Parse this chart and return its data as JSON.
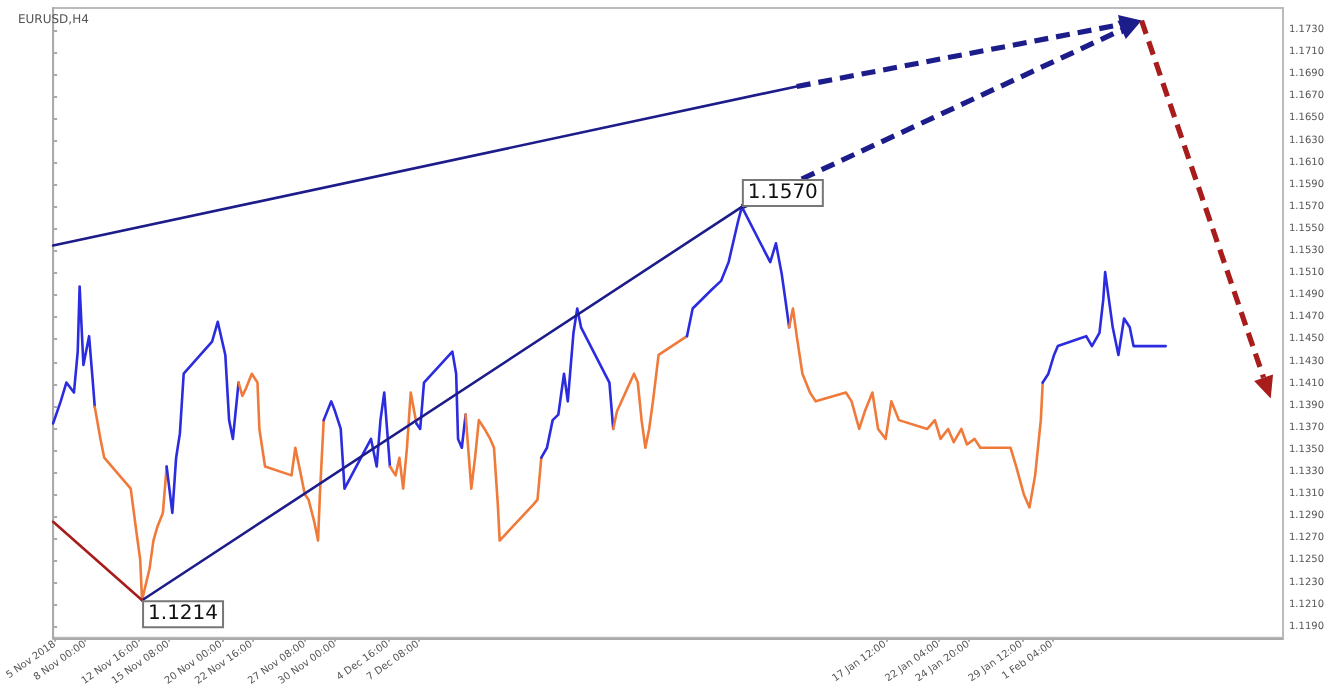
{
  "chart_data": {
    "type": "line",
    "title": "EURUSD,H4",
    "xlim": [
      "2018-11-05T04:00",
      "2019-02-21T12:00"
    ],
    "ylim": [
      1.118,
      1.175
    ],
    "xticks": [
      {
        "value": "2018-11-05T08:00",
        "label": "5 Nov 2018"
      },
      {
        "value": "2018-11-08T00:00",
        "label": "8 Nov 00:00"
      },
      {
        "value": "2018-11-12T16:00",
        "label": "12 Nov 16:00"
      },
      {
        "value": "2018-11-15T08:00",
        "label": "15 Nov 08:00"
      },
      {
        "value": "2018-11-20T00:00",
        "label": "20 Nov 00:00"
      },
      {
        "value": "2018-11-22T16:00",
        "label": "22 Nov 16:00"
      },
      {
        "value": "2018-11-27T08:00",
        "label": "27 Nov 08:00"
      },
      {
        "value": "2018-11-30T00:00",
        "label": "30 Nov 00:00"
      },
      {
        "value": "2018-12-04T16:00",
        "label": "4 Dec 16:00"
      },
      {
        "value": "2018-12-07T08:00",
        "label": "7 Dec 08:00"
      },
      {
        "value": "2019-01-17T12:00",
        "label": "17 Jan 12:00"
      },
      {
        "value": "2019-01-22T04:00",
        "label": "22 Jan 04:00"
      },
      {
        "value": "2019-01-24T20:00",
        "label": "24 Jan 20:00"
      },
      {
        "value": "2019-01-29T12:00",
        "label": "29 Jan 12:00"
      },
      {
        "value": "2019-02-01T04:00",
        "label": "1 Feb 04:00"
      }
    ],
    "yticks": [
      {
        "value": 1.119,
        "label": "1.1190"
      },
      {
        "value": 1.121,
        "label": "1.1210"
      },
      {
        "value": 1.123,
        "label": "1.1230"
      },
      {
        "value": 1.125,
        "label": "1.1250"
      },
      {
        "value": 1.127,
        "label": "1.1270"
      },
      {
        "value": 1.129,
        "label": "1.1290"
      },
      {
        "value": 1.131,
        "label": "1.1310"
      },
      {
        "value": 1.133,
        "label": "1.1330"
      },
      {
        "value": 1.135,
        "label": "1.1350"
      },
      {
        "value": 1.137,
        "label": "1.1370"
      },
      {
        "value": 1.139,
        "label": "1.1390"
      },
      {
        "value": 1.141,
        "label": "1.1410"
      },
      {
        "value": 1.143,
        "label": "1.1430"
      },
      {
        "value": 1.145,
        "label": "1.1450"
      },
      {
        "value": 1.147,
        "label": "1.1470"
      },
      {
        "value": 1.149,
        "label": "1.1490"
      },
      {
        "value": 1.151,
        "label": "1.1510"
      },
      {
        "value": 1.153,
        "label": "1.1530"
      },
      {
        "value": 1.155,
        "label": "1.1550"
      },
      {
        "value": 1.157,
        "label": "1.1570"
      },
      {
        "value": 1.159,
        "label": "1.1590"
      },
      {
        "value": 1.161,
        "label": "1.1610"
      },
      {
        "value": 1.163,
        "label": "1.1630"
      },
      {
        "value": 1.165,
        "label": "1.1650"
      },
      {
        "value": 1.167,
        "label": "1.1670"
      },
      {
        "value": 1.169,
        "label": "1.1690"
      },
      {
        "value": 1.171,
        "label": "1.1710"
      },
      {
        "value": 1.173,
        "label": "1.1730"
      }
    ],
    "grid": false,
    "line_style": "solid",
    "annotations": [
      {
        "text": "1.1570",
        "x": "2019-01-04T20:00",
        "y": 1.157
      },
      {
        "text": "1.1214",
        "x": "2018-11-13T00:00",
        "y": 1.1214
      }
    ],
    "series": [
      {
        "color": "#2b2be0",
        "x": [
          "2018-11-05T04:00",
          "2018-11-05T20:00",
          "2018-11-06T08:00",
          "2018-11-07T00:00",
          "2018-11-07T08:00",
          "2018-11-07T12:00",
          "2018-11-07T20:00",
          "2018-11-08T08:00",
          "2018-11-08T16:00",
          "2018-11-08T20:00"
        ],
        "values": [
          1.1374,
          1.1394,
          1.1411,
          1.1402,
          1.1439,
          1.1498,
          1.1427,
          1.1453,
          1.1411,
          1.1389
        ]
      },
      {
        "color": "#f07a3a",
        "x": [
          "2018-11-08T20:00",
          "2018-11-09T08:00",
          "2018-11-09T16:00",
          "2018-11-12T00:00",
          "2018-11-12T12:00",
          "2018-11-12T20:00",
          "2018-11-13T00:00",
          "2018-11-13T16:00",
          "2018-11-14T00:00",
          "2018-11-14T08:00",
          "2018-11-14T20:00",
          "2018-11-15T04:00"
        ],
        "values": [
          1.1389,
          1.136,
          1.1343,
          1.1315,
          1.1276,
          1.1251,
          1.1214,
          1.1243,
          1.1268,
          1.128,
          1.1293,
          1.1335
        ]
      },
      {
        "color": "#2b2be0",
        "x": [
          "2018-11-15T04:00",
          "2018-11-15T16:00",
          "2018-11-16T00:00",
          "2018-11-16T08:00",
          "2018-11-16T16:00",
          "2018-11-19T04:00",
          "2018-11-19T16:00",
          "2018-11-20T08:00",
          "2018-11-20T16:00",
          "2018-11-21T00:00",
          "2018-11-21T12:00"
        ],
        "values": [
          1.1335,
          1.1293,
          1.1343,
          1.1365,
          1.1419,
          1.1448,
          1.1466,
          1.1436,
          1.1377,
          1.136,
          1.1411
        ]
      },
      {
        "color": "#f07a3a",
        "x": [
          "2018-11-21T12:00",
          "2018-11-21T20:00",
          "2018-11-22T04:00",
          "2018-11-22T16:00",
          "2018-11-23T04:00",
          "2018-11-23T08:00",
          "2018-11-23T20:00",
          "2018-11-26T04:00",
          "2018-11-26T12:00",
          "2018-11-27T00:00",
          "2018-11-27T08:00",
          "2018-11-27T16:00",
          "2018-11-28T04:00",
          "2018-11-28T12:00",
          "2018-11-28T16:00",
          "2018-11-29T00:00"
        ],
        "values": [
          1.1411,
          1.1399,
          1.1406,
          1.1419,
          1.1411,
          1.1369,
          1.1335,
          1.1327,
          1.1352,
          1.1327,
          1.131,
          1.1305,
          1.1285,
          1.1268,
          1.131,
          1.1377
        ]
      },
      {
        "color": "#2b2be0",
        "x": [
          "2018-11-29T00:00",
          "2018-11-29T16:00",
          "2018-11-30T00:00",
          "2018-11-30T12:00",
          "2018-11-30T20:00",
          "2018-12-03T04:00",
          "2018-12-03T16:00",
          "2018-12-04T00:00",
          "2018-12-04T08:00",
          "2018-12-04T20:00"
        ],
        "values": [
          1.1377,
          1.1394,
          1.1385,
          1.1369,
          1.1315,
          1.136,
          1.1335,
          1.1377,
          1.1402,
          1.1335
        ]
      },
      {
        "color": "#f07a3a",
        "x": [
          "2018-12-04T20:00",
          "2018-12-05T08:00",
          "2018-12-05T16:00",
          "2018-12-06T00:00",
          "2018-12-06T08:00",
          "2018-12-06T16:00",
          "2018-12-07T04:00"
        ],
        "values": [
          1.1335,
          1.1327,
          1.1343,
          1.1315,
          1.1352,
          1.1402,
          1.1374
        ]
      },
      {
        "color": "#2b2be0",
        "x": [
          "2018-12-07T04:00",
          "2018-12-07T12:00",
          "2018-12-07T20:00",
          "2018-12-10T08:00",
          "2018-12-10T16:00",
          "2018-12-10T20:00",
          "2018-12-11T04:00",
          "2018-12-11T12:00"
        ],
        "values": [
          1.1374,
          1.1369,
          1.1411,
          1.1439,
          1.1419,
          1.136,
          1.1352,
          1.1382
        ]
      },
      {
        "color": "#f07a3a",
        "x": [
          "2018-12-11T12:00",
          "2018-12-12T00:00",
          "2018-12-12T08:00",
          "2018-12-12T16:00",
          "2018-12-13T04:00",
          "2018-12-13T16:00",
          "2018-12-14T00:00",
          "2018-12-14T08:00",
          "2018-12-14T12:00",
          "2018-12-17T12:00",
          "2018-12-17T20:00",
          "2018-12-18T04:00"
        ],
        "values": [
          1.1382,
          1.1315,
          1.1343,
          1.1377,
          1.1369,
          1.136,
          1.1352,
          1.1301,
          1.1268,
          1.1301,
          1.1305,
          1.1343
        ]
      },
      {
        "color": "#2b2be0",
        "x": [
          "2018-12-18T04:00",
          "2018-12-18T16:00",
          "2018-12-19T04:00",
          "2018-12-19T16:00",
          "2018-12-20T04:00",
          "2018-12-20T12:00",
          "2018-12-21T00:00",
          "2018-12-21T08:00",
          "2018-12-21T16:00",
          "2018-12-24T04:00",
          "2018-12-24T12:00"
        ],
        "values": [
          1.1343,
          1.1352,
          1.1377,
          1.1382,
          1.1419,
          1.1394,
          1.1456,
          1.1478,
          1.1461,
          1.1411,
          1.1369
        ]
      },
      {
        "color": "#f07a3a",
        "x": [
          "2018-12-24T12:00",
          "2018-12-24T20:00",
          "2018-12-26T08:00",
          "2018-12-26T16:00",
          "2018-12-27T00:00",
          "2018-12-27T08:00",
          "2018-12-27T16:00",
          "2018-12-28T00:00",
          "2018-12-28T12:00",
          "2018-12-31T00:00"
        ],
        "values": [
          1.1369,
          1.1385,
          1.1419,
          1.1411,
          1.1377,
          1.1352,
          1.1369,
          1.1394,
          1.1436,
          1.1453
        ]
      },
      {
        "color": "#2b2be0",
        "x": [
          "2018-12-31T00:00",
          "2018-12-31T12:00",
          "2019-01-02T04:00",
          "2019-01-03T00:00",
          "2019-01-03T16:00",
          "2019-01-04T12:00",
          "2019-01-04T20:00",
          "2019-01-07T08:00",
          "2019-01-07T20:00",
          "2019-01-08T08:00",
          "2019-01-08T16:00",
          "2019-01-09T00:00"
        ],
        "values": [
          1.1453,
          1.1478,
          1.1495,
          1.1503,
          1.152,
          1.1557,
          1.157,
          1.152,
          1.1537,
          1.151,
          1.1486,
          1.1461
        ]
      },
      {
        "color": "#f07a3a",
        "x": [
          "2019-01-09T00:00",
          "2019-01-09T08:00",
          "2019-01-09T16:00",
          "2019-01-10T04:00",
          "2019-01-10T20:00",
          "2019-01-11T08:00",
          "2019-01-14T00:00",
          "2019-01-14T12:00",
          "2019-01-15T04:00",
          "2019-01-15T16:00",
          "2019-01-16T08:00",
          "2019-01-16T20:00",
          "2019-01-17T12:00",
          "2019-01-18T00:00",
          "2019-01-18T16:00",
          "2019-01-21T04:00",
          "2019-01-21T20:00",
          "2019-01-22T08:00",
          "2019-01-23T00:00",
          "2019-01-23T12:00",
          "2019-01-24T04:00",
          "2019-01-24T16:00",
          "2019-01-25T08:00",
          "2019-01-25T20:00",
          "2019-01-28T12:00",
          "2019-01-29T00:00",
          "2019-01-29T16:00",
          "2019-01-30T04:00",
          "2019-01-30T16:00",
          "2019-01-31T04:00",
          "2019-01-31T08:00"
        ],
        "values": [
          1.1461,
          1.1478,
          1.1453,
          1.1419,
          1.1402,
          1.1394,
          1.1402,
          1.1394,
          1.1369,
          1.1385,
          1.1402,
          1.1369,
          1.136,
          1.1394,
          1.1377,
          1.1369,
          1.1377,
          1.136,
          1.1369,
          1.1357,
          1.1369,
          1.1355,
          1.136,
          1.1352,
          1.1352,
          1.1335,
          1.131,
          1.1298,
          1.1327,
          1.1377,
          1.1411
        ]
      },
      {
        "color": "#2b2be0",
        "x": [
          "2019-01-31T08:00",
          "2019-01-31T20:00",
          "2019-02-01T08:00",
          "2019-02-01T16:00",
          "2019-02-04T04:00",
          "2019-02-04T16:00",
          "2019-02-05T08:00",
          "2019-02-05T16:00",
          "2019-02-05T20:00",
          "2019-02-06T04:00",
          "2019-02-06T12:00",
          "2019-02-07T00:00",
          "2019-02-07T12:00",
          "2019-02-08T00:00",
          "2019-02-08T08:00",
          "2019-02-11T04:00"
        ],
        "values": [
          1.1411,
          1.1419,
          1.1436,
          1.1444,
          1.1453,
          1.1444,
          1.1456,
          1.1486,
          1.1511,
          1.1486,
          1.1461,
          1.1436,
          1.1469,
          1.1461,
          1.1444,
          1.1444
        ]
      },
      {
        "color": "#1c1c8a",
        "x": [
          "2018-11-05T04:00",
          "2019-01-09T16:00"
        ],
        "values": [
          1.1535,
          1.1679
        ]
      },
      {
        "color": "#1c1c8a",
        "x": [
          "2018-11-13T00:00",
          "2019-01-04T20:00"
        ],
        "values": [
          1.1214,
          1.157
        ]
      },
      {
        "color": "#a81c1c",
        "x": [
          "2018-11-05T04:00",
          "2018-11-13T00:00"
        ],
        "values": [
          1.1285,
          1.1214
        ]
      }
    ]
  }
}
